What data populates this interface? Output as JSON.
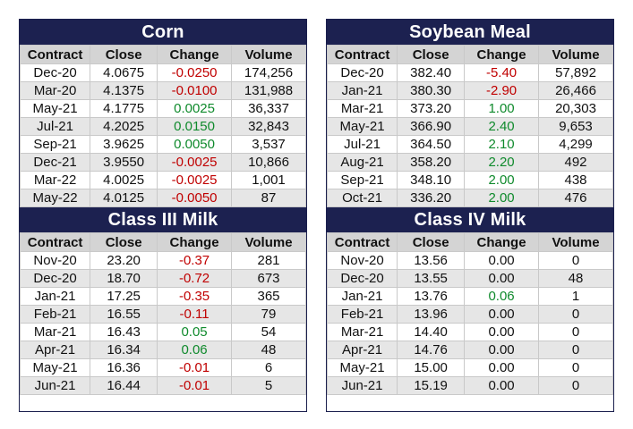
{
  "columns": [
    "Contract",
    "Close",
    "Change",
    "Volume"
  ],
  "tables": [
    {
      "title": "Corn",
      "rows": [
        {
          "contract": "Dec-20",
          "close": "4.0675",
          "change": "-0.0250",
          "volume": "174,256"
        },
        {
          "contract": "Mar-20",
          "close": "4.1375",
          "change": "-0.0100",
          "volume": "131,988"
        },
        {
          "contract": "May-21",
          "close": "4.1775",
          "change": "0.0025",
          "volume": "36,337"
        },
        {
          "contract": "Jul-21",
          "close": "4.2025",
          "change": "0.0150",
          "volume": "32,843"
        },
        {
          "contract": "Sep-21",
          "close": "3.9625",
          "change": "0.0050",
          "volume": "3,537"
        },
        {
          "contract": "Dec-21",
          "close": "3.9550",
          "change": "-0.0025",
          "volume": "10,866"
        },
        {
          "contract": "Mar-22",
          "close": "4.0025",
          "change": "-0.0025",
          "volume": "1,001"
        },
        {
          "contract": "May-22",
          "close": "4.0125",
          "change": "-0.0050",
          "volume": "87"
        }
      ]
    },
    {
      "title": "Soybean Meal",
      "rows": [
        {
          "contract": "Dec-20",
          "close": "382.40",
          "change": "-5.40",
          "volume": "57,892"
        },
        {
          "contract": "Jan-21",
          "close": "380.30",
          "change": "-2.90",
          "volume": "26,466"
        },
        {
          "contract": "Mar-21",
          "close": "373.20",
          "change": "1.00",
          "volume": "20,303"
        },
        {
          "contract": "May-21",
          "close": "366.90",
          "change": "2.40",
          "volume": "9,653"
        },
        {
          "contract": "Jul-21",
          "close": "364.50",
          "change": "2.10",
          "volume": "4,299"
        },
        {
          "contract": "Aug-21",
          "close": "358.20",
          "change": "2.20",
          "volume": "492"
        },
        {
          "contract": "Sep-21",
          "close": "348.10",
          "change": "2.00",
          "volume": "438"
        },
        {
          "contract": "Oct-21",
          "close": "336.20",
          "change": "2.00",
          "volume": "476"
        }
      ]
    },
    {
      "title": "Class III Milk",
      "rows": [
        {
          "contract": "Nov-20",
          "close": "23.20",
          "change": "-0.37",
          "volume": "281"
        },
        {
          "contract": "Dec-20",
          "close": "18.70",
          "change": "-0.72",
          "volume": "673"
        },
        {
          "contract": "Jan-21",
          "close": "17.25",
          "change": "-0.35",
          "volume": "365"
        },
        {
          "contract": "Feb-21",
          "close": "16.55",
          "change": "-0.11",
          "volume": "79"
        },
        {
          "contract": "Mar-21",
          "close": "16.43",
          "change": "0.05",
          "volume": "54"
        },
        {
          "contract": "Apr-21",
          "close": "16.34",
          "change": "0.06",
          "volume": "48"
        },
        {
          "contract": "May-21",
          "close": "16.36",
          "change": "-0.01",
          "volume": "6"
        },
        {
          "contract": "Jun-21",
          "close": "16.44",
          "change": "-0.01",
          "volume": "5"
        }
      ]
    },
    {
      "title": "Class IV Milk",
      "rows": [
        {
          "contract": "Nov-20",
          "close": "13.56",
          "change": "0.00",
          "volume": "0"
        },
        {
          "contract": "Dec-20",
          "close": "13.55",
          "change": "0.00",
          "volume": "48"
        },
        {
          "contract": "Jan-21",
          "close": "13.76",
          "change": "0.06",
          "volume": "1"
        },
        {
          "contract": "Feb-21",
          "close": "13.96",
          "change": "0.00",
          "volume": "0"
        },
        {
          "contract": "Mar-21",
          "close": "14.40",
          "change": "0.00",
          "volume": "0"
        },
        {
          "contract": "Apr-21",
          "close": "14.76",
          "change": "0.00",
          "volume": "0"
        },
        {
          "contract": "May-21",
          "close": "15.00",
          "change": "0.00",
          "volume": "0"
        },
        {
          "contract": "Jun-21",
          "close": "15.19",
          "change": "0.00",
          "volume": "0"
        }
      ]
    }
  ],
  "colors": {
    "title_bg": "#1c2150",
    "negative": "#c00000",
    "positive": "#0f8a2c",
    "header_bg": "#d4d4d4",
    "alt_row_bg": "#e6e6e6"
  }
}
